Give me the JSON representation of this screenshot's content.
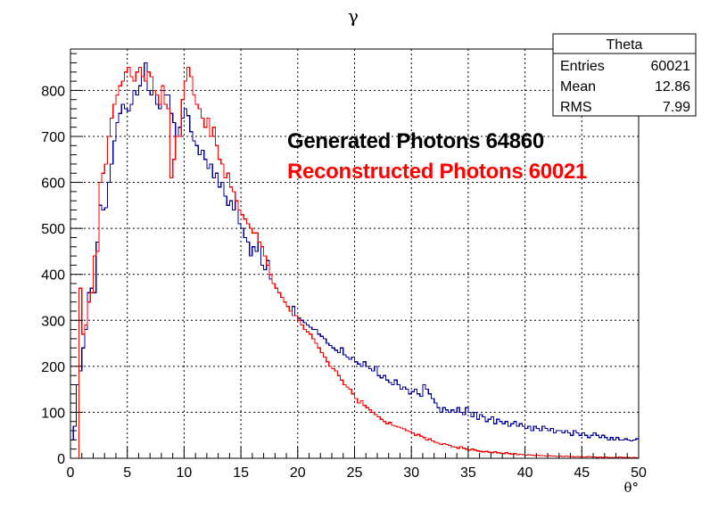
{
  "chart_data": {
    "type": "line",
    "title": "γ",
    "xlabel": "θ°",
    "ylabel": "",
    "xlim": [
      0,
      50
    ],
    "ylim": [
      0,
      890
    ],
    "xticks": [
      "0",
      "5",
      "10",
      "15",
      "20",
      "25",
      "30",
      "35",
      "40",
      "45",
      "50"
    ],
    "yticks": [
      "0",
      "100",
      "200",
      "300",
      "400",
      "500",
      "600",
      "700",
      "800"
    ],
    "grid": true,
    "legend": "none",
    "stats_box": {
      "title": "Theta",
      "rows": [
        {
          "label": "Entries",
          "value": "60021"
        },
        {
          "label": "Mean",
          "value": "12.86"
        },
        {
          "label": "RMS",
          "value": "7.99"
        }
      ]
    },
    "annotations": [
      {
        "text": "Generated Photons 64860",
        "color": "#000000"
      },
      {
        "text": "Reconstructed Photons 60021",
        "color": "#ff0000"
      }
    ],
    "bin_width": 0.25,
    "series": [
      {
        "color": "#000099",
        "values": [
          40,
          70,
          160,
          190,
          240,
          280,
          360,
          370,
          360,
          470,
          550,
          540,
          545,
          600,
          640,
          690,
          730,
          750,
          770,
          760,
          755,
          770,
          800,
          790,
          810,
          830,
          860,
          800,
          790,
          800,
          770,
          760,
          800,
          790,
          790,
          750,
          730,
          700,
          720,
          740,
          760,
          745,
          710,
          690,
          680,
          660,
          670,
          650,
          630,
          640,
          610,
          620,
          590,
          600,
          570,
          550,
          560,
          540,
          560,
          510,
          500,
          480,
          470,
          440,
          460,
          450,
          470,
          420,
          410,
          430,
          390,
          380,
          370,
          360,
          350,
          340,
          330,
          320,
          330,
          310,
          305,
          300,
          295,
          290,
          285,
          280,
          280,
          270,
          265,
          260,
          250,
          245,
          240,
          235,
          230,
          240,
          225,
          220,
          215,
          220,
          210,
          205,
          200,
          210,
          200,
          195,
          190,
          200,
          180,
          175,
          180,
          170,
          165,
          160,
          170,
          160,
          150,
          155,
          150,
          140,
          145,
          150,
          140,
          135,
          160,
          150,
          140,
          130,
          120,
          110,
          100,
          110,
          105,
          100,
          105,
          100,
          110,
          100,
          95,
          110,
          100,
          90,
          100,
          85,
          95,
          90,
          80,
          85,
          90,
          75,
          85,
          80,
          75,
          80,
          70,
          75,
          80,
          70,
          75,
          70,
          65,
          70,
          60,
          70,
          65,
          60,
          70,
          65,
          60,
          65,
          55,
          60,
          60,
          55,
          60,
          55,
          50,
          60,
          55,
          50,
          55,
          50,
          45,
          50,
          55,
          50,
          45,
          50,
          45,
          40,
          45,
          40,
          45,
          40,
          40,
          42,
          40,
          38,
          40,
          42
        ]
      },
      {
        "color": "#ff0000",
        "values": [
          0,
          0,
          0,
          370,
          270,
          290,
          340,
          360,
          440,
          450,
          600,
          620,
          640,
          700,
          740,
          770,
          790,
          810,
          820,
          840,
          850,
          830,
          820,
          840,
          850,
          830,
          820,
          840,
          830,
          800,
          790,
          770,
          810,
          770,
          760,
          610,
          650,
          700,
          700,
          780,
          820,
          850,
          830,
          790,
          770,
          760,
          740,
          720,
          740,
          700,
          720,
          680,
          650,
          640,
          610,
          620,
          590,
          580,
          560,
          540,
          530,
          520,
          510,
          500,
          490,
          490,
          470,
          460,
          440,
          420,
          400,
          380,
          370,
          360,
          350,
          340,
          330,
          320,
          310,
          310,
          300,
          290,
          280,
          275,
          270,
          260,
          250,
          240,
          230,
          220,
          210,
          200,
          195,
          190,
          180,
          170,
          160,
          155,
          150,
          140,
          130,
          120,
          125,
          115,
          110,
          105,
          100,
          95,
          90,
          85,
          80,
          75,
          78,
          72,
          70,
          68,
          66,
          64,
          60,
          58,
          55,
          50,
          52,
          48,
          45,
          40,
          42,
          38,
          35,
          33,
          30,
          32,
          30,
          28,
          25,
          24,
          22,
          25,
          22,
          20,
          18,
          20,
          18,
          16,
          15,
          14,
          15,
          13,
          12,
          14,
          12,
          11,
          10,
          12,
          10,
          9,
          10,
          8,
          9,
          8,
          7,
          8,
          7,
          6,
          7,
          6,
          6,
          5,
          6,
          5,
          5,
          4,
          5,
          4,
          5,
          4,
          4,
          3,
          4,
          3,
          3,
          3,
          4,
          3,
          3,
          2,
          3,
          2,
          3,
          2,
          2,
          2,
          2,
          3,
          2,
          2,
          2,
          1,
          2,
          1
        ]
      }
    ]
  }
}
